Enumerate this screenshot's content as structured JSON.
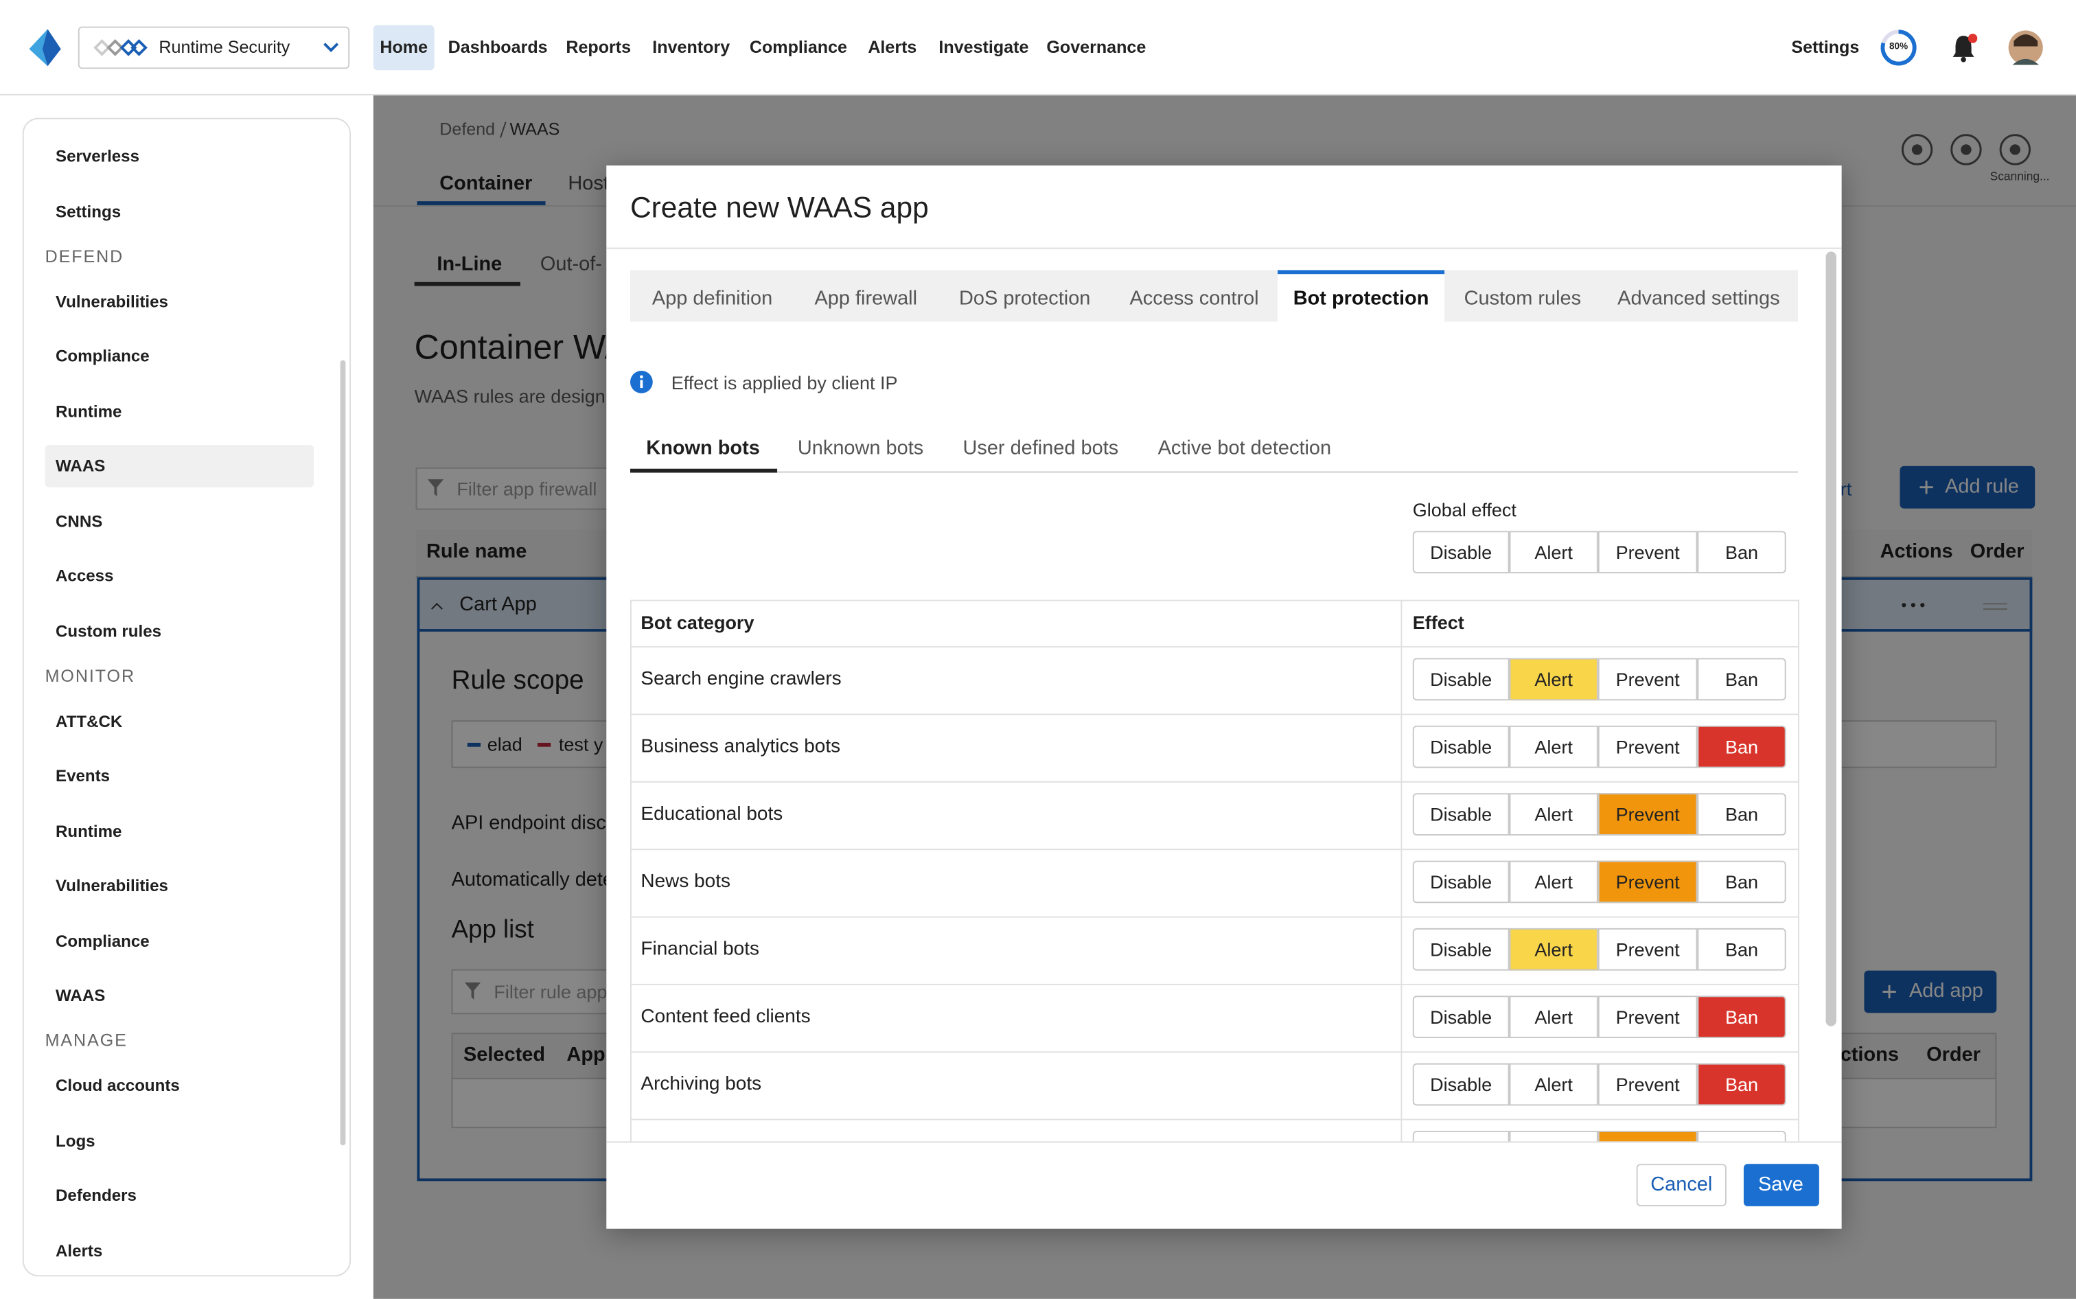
{
  "topbar": {
    "project": "Runtime Security",
    "nav": [
      "Home",
      "Dashboards",
      "Reports",
      "Inventory",
      "Compliance",
      "Alerts",
      "Investigate",
      "Governance"
    ],
    "active_nav": 0,
    "settings": "Settings",
    "scan_progress": "80%"
  },
  "sidebar": {
    "top_items": [
      "Serverless",
      "Settings"
    ],
    "sections": [
      {
        "title": "DEFEND",
        "items": [
          "Vulnerabilities",
          "Compliance",
          "Runtime",
          "WAAS",
          "CNNS",
          "Access",
          "Custom rules"
        ]
      },
      {
        "title": "MONITOR",
        "items": [
          "ATT&CK",
          "Events",
          "Runtime",
          "Vulnerabilities",
          "Compliance",
          "WAAS"
        ]
      },
      {
        "title": "MANAGE",
        "items": [
          "Cloud accounts",
          "Logs",
          "Defenders",
          "Alerts"
        ]
      }
    ],
    "active": {
      "section": 0,
      "item": 3
    }
  },
  "page": {
    "breadcrumb": [
      "Defend",
      "WAAS"
    ],
    "tabs": [
      "Container",
      "Host"
    ],
    "subtabs": [
      "In-Line",
      "Out-of-"
    ],
    "title": "Container WA",
    "description": "WAAS rules are design",
    "filter_placeholder": "Filter app firewall",
    "link_fragment": "rt",
    "add_rule": "Add rule",
    "columns": [
      "Rule name",
      "Actions",
      "Order"
    ],
    "rule": {
      "name": "Cart App",
      "scope_title": "Rule scope",
      "scope_tags": [
        "elad",
        "test y"
      ],
      "api_discovery": "API endpoint disco",
      "auto_detect": "Automatically dete",
      "app_list_title": "App list",
      "app_filter_placeholder": "Filter rule app",
      "add_app": "Add app",
      "app_columns": [
        "Selected",
        "App",
        "ctions",
        "Order"
      ]
    },
    "status": "Scanning..."
  },
  "modal": {
    "title": "Create new WAAS app",
    "tabs": [
      "App definition",
      "App firewall",
      "DoS protection",
      "Access control",
      "Bot protection",
      "Custom rules",
      "Advanced settings"
    ],
    "active_tab": 4,
    "info": "Effect is applied by client IP",
    "subtabs": [
      "Known bots",
      "Unknown bots",
      "User defined bots",
      "Active bot detection"
    ],
    "active_subtab": 0,
    "global_effect_label": "Global effect",
    "effects": [
      "Disable",
      "Alert",
      "Prevent",
      "Ban"
    ],
    "global_effect": null,
    "effect_colors": [
      "#ffffff",
      "#f9d54a",
      "#f0950c",
      "#d9342b"
    ],
    "columns": [
      "Bot category",
      "Effect"
    ],
    "rows": [
      {
        "name": "Search engine crawlers",
        "effect": 1
      },
      {
        "name": "Business analytics bots",
        "effect": 3
      },
      {
        "name": "Educational bots",
        "effect": 2
      },
      {
        "name": "News bots",
        "effect": 2
      },
      {
        "name": "Financial bots",
        "effect": 1
      },
      {
        "name": "Content feed clients",
        "effect": 3
      },
      {
        "name": "Archiving bots",
        "effect": 3
      },
      {
        "name": null,
        "effect": 2
      }
    ],
    "cancel": "Cancel",
    "save": "Save"
  }
}
